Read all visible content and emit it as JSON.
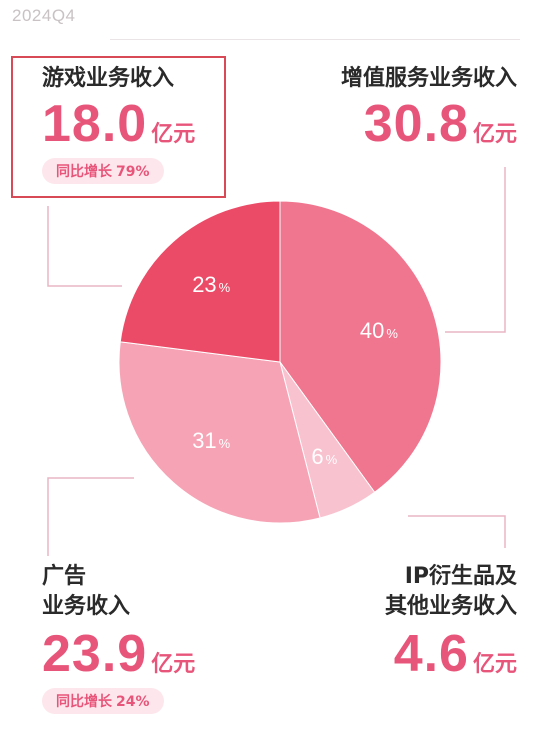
{
  "period": "2024Q4",
  "segments": [
    {
      "id": "game",
      "label_lines": [
        "游戏业务收入"
      ],
      "amount": "18.0",
      "unit": "亿元",
      "yoy_label": "同比增长",
      "yoy_value": "79%"
    },
    {
      "id": "vas",
      "label_lines": [
        "增值服务业务收入"
      ],
      "amount": "30.8",
      "unit": "亿元"
    },
    {
      "id": "ad",
      "label_lines": [
        "广告",
        "业务收入"
      ],
      "amount": "23.9",
      "unit": "亿元",
      "yoy_label": "同比增长",
      "yoy_value": "24%"
    },
    {
      "id": "ip",
      "label_lines": [
        "IP衍生品及",
        "其他业务收入"
      ],
      "amount": "4.6",
      "unit": "亿元"
    }
  ],
  "colors": {
    "amount_text": "#e8557a",
    "yoy_text": "#e8557a",
    "yoy_bg": "#fde6ec",
    "highlight_border": "#d84a55",
    "connector": "#e9b6c3",
    "slice_labels": "#ffffff"
  },
  "chart_data": {
    "type": "pie",
    "title": "",
    "start_angle_deg": 0,
    "direction": "clockwise",
    "slices": [
      {
        "id": "vas",
        "value": 40,
        "label": "40",
        "unit": "%",
        "color": "#f0758f"
      },
      {
        "id": "ip",
        "value": 6,
        "label": "6",
        "unit": "%",
        "color": "#f8c2cf"
      },
      {
        "id": "ad",
        "value": 31,
        "label": "31",
        "unit": "%",
        "color": "#f6a3b5"
      },
      {
        "id": "game",
        "value": 23,
        "label": "23",
        "unit": "%",
        "color": "#ec4b67"
      }
    ]
  }
}
